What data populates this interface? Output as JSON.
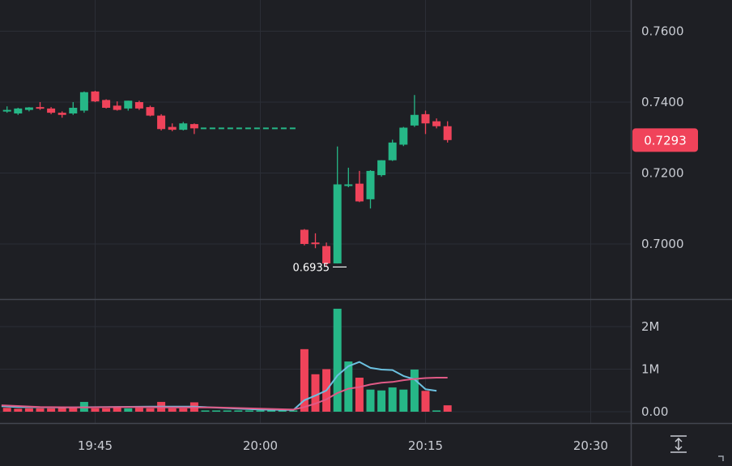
{
  "chart_data": [
    {
      "type": "candlestick",
      "pane": "price",
      "x_unit": "time",
      "ylim": [
        0.6835,
        0.7785
      ],
      "y_ticks": [
        "0.7000",
        "0.7200",
        "0.7400",
        "0.7600"
      ],
      "y_tick_values": [
        0.7,
        0.72,
        0.74,
        0.76
      ],
      "current_price_label": "0.7293",
      "current_price": 0.7293,
      "current_price_color": "#f0435a",
      "low_annotation": "0.6935",
      "low_annotation_value": 0.6935,
      "up_color": "#26b787",
      "down_color": "#f0435a",
      "gap_line": {
        "from": "19:54",
        "to": "20:04",
        "value": 0.7326,
        "color": "#26b787",
        "style": "dashed"
      },
      "candles": [
        {
          "t": "19:37",
          "o": 0.7378,
          "h": 0.7388,
          "l": 0.737,
          "c": 0.7378
        },
        {
          "t": "19:38",
          "o": 0.7368,
          "h": 0.7384,
          "l": 0.7364,
          "c": 0.7382
        },
        {
          "t": "19:39",
          "o": 0.7378,
          "h": 0.7386,
          "l": 0.7374,
          "c": 0.7385
        },
        {
          "t": "19:40",
          "o": 0.7386,
          "h": 0.74,
          "l": 0.7378,
          "c": 0.7382
        },
        {
          "t": "19:41",
          "o": 0.7382,
          "h": 0.7386,
          "l": 0.7366,
          "c": 0.737
        },
        {
          "t": "19:42",
          "o": 0.737,
          "h": 0.7374,
          "l": 0.7356,
          "c": 0.7364
        },
        {
          "t": "19:43",
          "o": 0.7368,
          "h": 0.74,
          "l": 0.7364,
          "c": 0.7384
        },
        {
          "t": "19:44",
          "o": 0.7376,
          "h": 0.743,
          "l": 0.737,
          "c": 0.7428
        },
        {
          "t": "19:45",
          "o": 0.743,
          "h": 0.7432,
          "l": 0.74,
          "c": 0.7402
        },
        {
          "t": "19:46",
          "o": 0.7406,
          "h": 0.7408,
          "l": 0.7382,
          "c": 0.7384
        },
        {
          "t": "19:47",
          "o": 0.739,
          "h": 0.7402,
          "l": 0.7376,
          "c": 0.7378
        },
        {
          "t": "19:48",
          "o": 0.7382,
          "h": 0.7404,
          "l": 0.7376,
          "c": 0.7404
        },
        {
          "t": "19:49",
          "o": 0.74,
          "h": 0.7404,
          "l": 0.7378,
          "c": 0.7382
        },
        {
          "t": "19:50",
          "o": 0.7386,
          "h": 0.739,
          "l": 0.736,
          "c": 0.7362
        },
        {
          "t": "19:51",
          "o": 0.7362,
          "h": 0.7366,
          "l": 0.732,
          "c": 0.7324
        },
        {
          "t": "19:52",
          "o": 0.733,
          "h": 0.734,
          "l": 0.7318,
          "c": 0.7322
        },
        {
          "t": "19:53",
          "o": 0.7322,
          "h": 0.7344,
          "l": 0.732,
          "c": 0.734
        },
        {
          "t": "19:54",
          "o": 0.7338,
          "h": 0.734,
          "l": 0.731,
          "c": 0.7326
        },
        {
          "t": "20:04",
          "o": 0.704,
          "h": 0.7042,
          "l": 0.6996,
          "c": 0.7
        },
        {
          "t": "20:05",
          "o": 0.7004,
          "h": 0.703,
          "l": 0.6988,
          "c": 0.7002
        },
        {
          "t": "20:06",
          "o": 0.6994,
          "h": 0.7004,
          "l": 0.6935,
          "c": 0.6945
        },
        {
          "t": "20:07",
          "o": 0.6945,
          "h": 0.7275,
          "l": 0.6945,
          "c": 0.7168
        },
        {
          "t": "20:08",
          "o": 0.7166,
          "h": 0.7215,
          "l": 0.716,
          "c": 0.7168
        },
        {
          "t": "20:09",
          "o": 0.717,
          "h": 0.7206,
          "l": 0.7118,
          "c": 0.712
        },
        {
          "t": "20:10",
          "o": 0.7126,
          "h": 0.7208,
          "l": 0.71,
          "c": 0.7206
        },
        {
          "t": "20:11",
          "o": 0.7194,
          "h": 0.7236,
          "l": 0.719,
          "c": 0.7236
        },
        {
          "t": "20:12",
          "o": 0.7236,
          "h": 0.7294,
          "l": 0.7234,
          "c": 0.7286
        },
        {
          "t": "20:13",
          "o": 0.728,
          "h": 0.733,
          "l": 0.7276,
          "c": 0.7328
        },
        {
          "t": "20:14",
          "o": 0.7334,
          "h": 0.742,
          "l": 0.733,
          "c": 0.7364
        },
        {
          "t": "20:15",
          "o": 0.7366,
          "h": 0.7376,
          "l": 0.731,
          "c": 0.734
        },
        {
          "t": "20:16",
          "o": 0.7346,
          "h": 0.7354,
          "l": 0.7326,
          "c": 0.7332
        },
        {
          "t": "20:17",
          "o": 0.7332,
          "h": 0.7346,
          "l": 0.7286,
          "c": 0.7293
        }
      ]
    },
    {
      "type": "bar",
      "pane": "volume",
      "ylim": [
        -0.05,
        2.55
      ],
      "y_ticks": [
        "0.00",
        "1M",
        "2M"
      ],
      "y_tick_values": [
        0,
        1,
        2
      ],
      "values_unit": "millions",
      "bars": [
        {
          "t": "19:37",
          "v": 0.09,
          "dir": "down"
        },
        {
          "t": "19:38",
          "v": 0.07,
          "dir": "down"
        },
        {
          "t": "19:39",
          "v": 0.08,
          "dir": "down"
        },
        {
          "t": "19:40",
          "v": 0.08,
          "dir": "down"
        },
        {
          "t": "19:41",
          "v": 0.08,
          "dir": "down"
        },
        {
          "t": "19:42",
          "v": 0.09,
          "dir": "down"
        },
        {
          "t": "19:43",
          "v": 0.09,
          "dir": "down"
        },
        {
          "t": "19:44",
          "v": 0.23,
          "dir": "up"
        },
        {
          "t": "19:45",
          "v": 0.08,
          "dir": "down"
        },
        {
          "t": "19:46",
          "v": 0.08,
          "dir": "down"
        },
        {
          "t": "19:47",
          "v": 0.12,
          "dir": "down"
        },
        {
          "t": "19:48",
          "v": 0.08,
          "dir": "up"
        },
        {
          "t": "19:49",
          "v": 0.09,
          "dir": "down"
        },
        {
          "t": "19:50",
          "v": 0.08,
          "dir": "down"
        },
        {
          "t": "19:51",
          "v": 0.23,
          "dir": "down"
        },
        {
          "t": "19:52",
          "v": 0.08,
          "dir": "down"
        },
        {
          "t": "19:53",
          "v": 0.08,
          "dir": "down"
        },
        {
          "t": "19:54",
          "v": 0.22,
          "dir": "down"
        },
        {
          "t": "19:55",
          "v": 0.03,
          "dir": "up"
        },
        {
          "t": "19:56",
          "v": 0.03,
          "dir": "up"
        },
        {
          "t": "19:57",
          "v": 0.03,
          "dir": "up"
        },
        {
          "t": "19:58",
          "v": 0.03,
          "dir": "up"
        },
        {
          "t": "19:59",
          "v": 0.03,
          "dir": "up"
        },
        {
          "t": "20:00",
          "v": 0.03,
          "dir": "up"
        },
        {
          "t": "20:01",
          "v": 0.03,
          "dir": "up"
        },
        {
          "t": "20:02",
          "v": 0.03,
          "dir": "up"
        },
        {
          "t": "20:03",
          "v": 0.03,
          "dir": "up"
        },
        {
          "t": "20:04",
          "v": 1.47,
          "dir": "down"
        },
        {
          "t": "20:05",
          "v": 0.88,
          "dir": "down"
        },
        {
          "t": "20:06",
          "v": 1.0,
          "dir": "down"
        },
        {
          "t": "20:07",
          "v": 2.42,
          "dir": "up"
        },
        {
          "t": "20:08",
          "v": 1.18,
          "dir": "up"
        },
        {
          "t": "20:09",
          "v": 0.8,
          "dir": "down"
        },
        {
          "t": "20:10",
          "v": 0.52,
          "dir": "up"
        },
        {
          "t": "20:11",
          "v": 0.5,
          "dir": "up"
        },
        {
          "t": "20:12",
          "v": 0.57,
          "dir": "up"
        },
        {
          "t": "20:13",
          "v": 0.52,
          "dir": "up"
        },
        {
          "t": "20:14",
          "v": 0.99,
          "dir": "up"
        },
        {
          "t": "20:15",
          "v": 0.49,
          "dir": "down"
        },
        {
          "t": "20:16",
          "v": 0.03,
          "dir": "up"
        },
        {
          "t": "20:17",
          "v": 0.15,
          "dir": "down"
        }
      ],
      "ma_lines": [
        {
          "color": "#6cc1e0",
          "points": [
            [
              "19:36.5",
              0.13
            ],
            [
              "19:38",
              0.11
            ],
            [
              "19:42",
              0.1
            ],
            [
              "19:46",
              0.11
            ],
            [
              "19:50",
              0.12
            ],
            [
              "19:54",
              0.12
            ],
            [
              "19:58",
              0.07
            ],
            [
              "20:00",
              0.05
            ],
            [
              "20:03",
              0.04
            ],
            [
              "20:04",
              0.27
            ],
            [
              "20:05",
              0.38
            ],
            [
              "20:06",
              0.5
            ],
            [
              "20:07",
              0.85
            ],
            [
              "20:08",
              1.07
            ],
            [
              "20:09",
              1.17
            ],
            [
              "20:10",
              1.03
            ],
            [
              "20:11",
              0.99
            ],
            [
              "20:12",
              0.98
            ],
            [
              "20:13",
              0.84
            ],
            [
              "20:14",
              0.76
            ],
            [
              "20:15",
              0.53
            ],
            [
              "20:16",
              0.49
            ]
          ]
        },
        {
          "color": "#e05a86",
          "points": [
            [
              "19:36.5",
              0.15
            ],
            [
              "19:40",
              0.11
            ],
            [
              "19:44",
              0.1
            ],
            [
              "19:48",
              0.11
            ],
            [
              "19:52",
              0.1
            ],
            [
              "19:56",
              0.1
            ],
            [
              "20:00",
              0.07
            ],
            [
              "20:03",
              0.05
            ],
            [
              "20:04",
              0.11
            ],
            [
              "20:05",
              0.19
            ],
            [
              "20:06",
              0.29
            ],
            [
              "20:07",
              0.44
            ],
            [
              "20:08",
              0.54
            ],
            [
              "20:09",
              0.58
            ],
            [
              "20:10",
              0.64
            ],
            [
              "20:11",
              0.68
            ],
            [
              "20:12",
              0.7
            ],
            [
              "20:13",
              0.74
            ],
            [
              "20:14",
              0.77
            ],
            [
              "20:15",
              0.79
            ],
            [
              "20:16",
              0.8
            ],
            [
              "20:17",
              0.8
            ]
          ]
        }
      ]
    }
  ],
  "x_axis": {
    "ticks": [
      "19:45",
      "20:00",
      "20:15",
      "20:30"
    ]
  },
  "icons": {
    "scale_button": "auto-scale-icon",
    "resize_handle": "resize-corner-icon"
  }
}
